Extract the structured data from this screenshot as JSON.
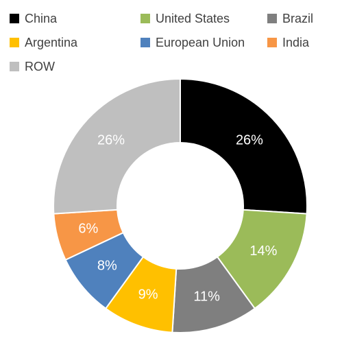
{
  "chart_data": {
    "type": "donut",
    "categories": [
      "China",
      "United States",
      "Brazil",
      "Argentina",
      "European Union",
      "India",
      "ROW"
    ],
    "values": [
      26,
      14,
      11,
      9,
      8,
      6,
      26
    ],
    "value_labels": [
      "26%",
      "14%",
      "11%",
      "9%",
      "8%",
      "6%",
      "26%"
    ],
    "colors": [
      "#000000",
      "#9bbb59",
      "#7f7f7f",
      "#ffc000",
      "#4f81bd",
      "#f79646",
      "#bfbfbf"
    ],
    "legend": "top"
  }
}
